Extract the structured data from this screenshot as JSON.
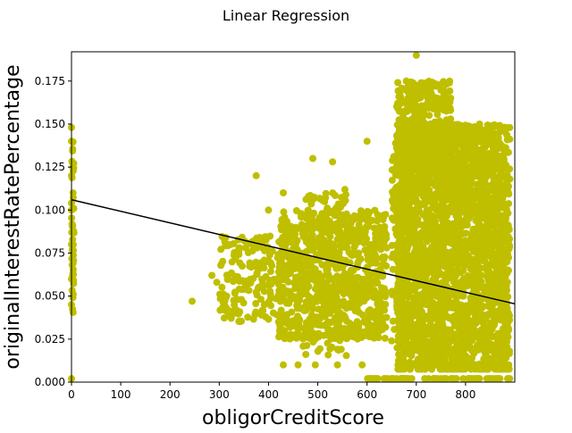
{
  "chart_data": {
    "type": "scatter",
    "title": "Linear Regression",
    "xlabel": "obligorCreditScore",
    "ylabel": "originalInterestRatePercentage",
    "xlim": [
      0,
      900
    ],
    "ylim": [
      0,
      0.192
    ],
    "x_ticks": [
      "0",
      "100",
      "200",
      "300",
      "400",
      "500",
      "600",
      "700",
      "800"
    ],
    "y_ticks": [
      "0.000",
      "0.025",
      "0.050",
      "0.075",
      "0.100",
      "0.125",
      "0.150",
      "0.175"
    ],
    "grid": false,
    "marker_color": "#bfbf00",
    "line_color": "#000000",
    "regression_line": {
      "x": [
        0,
        900
      ],
      "y": [
        0.106,
        0.0455
      ]
    },
    "scatter_points": [
      {
        "x": 0,
        "y": 0.148
      },
      {
        "x": 0,
        "y": 0.14
      },
      {
        "x": 0,
        "y": 0.12
      },
      {
        "x": 0,
        "y": 0.1
      },
      {
        "x": 0,
        "y": 0.08
      },
      {
        "x": 0,
        "y": 0.06
      },
      {
        "x": 0,
        "y": 0.045
      },
      {
        "x": 0,
        "y": 0.002
      },
      {
        "x": 245,
        "y": 0.047
      },
      {
        "x": 285,
        "y": 0.062
      },
      {
        "x": 295,
        "y": 0.058
      },
      {
        "x": 315,
        "y": 0.05
      },
      {
        "x": 330,
        "y": 0.04
      },
      {
        "x": 345,
        "y": 0.048
      },
      {
        "x": 375,
        "y": 0.12
      },
      {
        "x": 400,
        "y": 0.1
      },
      {
        "x": 430,
        "y": 0.11
      },
      {
        "x": 490,
        "y": 0.13
      },
      {
        "x": 530,
        "y": 0.128
      },
      {
        "x": 555,
        "y": 0.112
      },
      {
        "x": 600,
        "y": 0.14
      },
      {
        "x": 640,
        "y": 0.078
      },
      {
        "x": 890,
        "y": 0.118
      },
      {
        "x": 700,
        "y": 0.19
      },
      {
        "x": 805,
        "y": 0.137
      },
      {
        "x": 460,
        "y": 0.055
      },
      {
        "x": 520,
        "y": 0.045
      },
      {
        "x": 560,
        "y": 0.06
      },
      {
        "x": 650,
        "y": 0.024
      },
      {
        "x": 430,
        "y": 0.01
      },
      {
        "x": 460,
        "y": 0.01
      },
      {
        "x": 495,
        "y": 0.01
      },
      {
        "x": 540,
        "y": 0.01
      },
      {
        "x": 590,
        "y": 0.01
      },
      {
        "x": 620,
        "y": 0.002
      }
    ],
    "clusters": [
      {
        "x_min": 0,
        "x_max": 5,
        "y_min": 0.04,
        "y_max": 0.14,
        "count": 45
      },
      {
        "x_min": 300,
        "x_max": 430,
        "y_min": 0.035,
        "y_max": 0.085,
        "count": 170
      },
      {
        "x_min": 420,
        "x_max": 640,
        "y_min": 0.025,
        "y_max": 0.1,
        "count": 850
      },
      {
        "x_min": 470,
        "x_max": 560,
        "y_min": 0.015,
        "y_max": 0.11,
        "count": 150
      },
      {
        "x_min": 650,
        "x_max": 690,
        "y_min": 0.02,
        "y_max": 0.14,
        "count": 180
      },
      {
        "x_min": 660,
        "x_max": 890,
        "y_min": 0.01,
        "y_max": 0.15,
        "count": 2400
      },
      {
        "x_min": 660,
        "x_max": 770,
        "y_min": 0.12,
        "y_max": 0.175,
        "count": 350
      },
      {
        "x_min": 760,
        "x_max": 860,
        "y_min": 0.1,
        "y_max": 0.15,
        "count": 160
      }
    ],
    "rows": [
      {
        "x_min": 660,
        "x_max": 890,
        "y": 0.01,
        "count": 110
      },
      {
        "x_min": 660,
        "x_max": 890,
        "y": 0.0075,
        "count": 50
      },
      {
        "x_min": 600,
        "x_max": 890,
        "y": 0.002,
        "count": 70
      }
    ]
  }
}
